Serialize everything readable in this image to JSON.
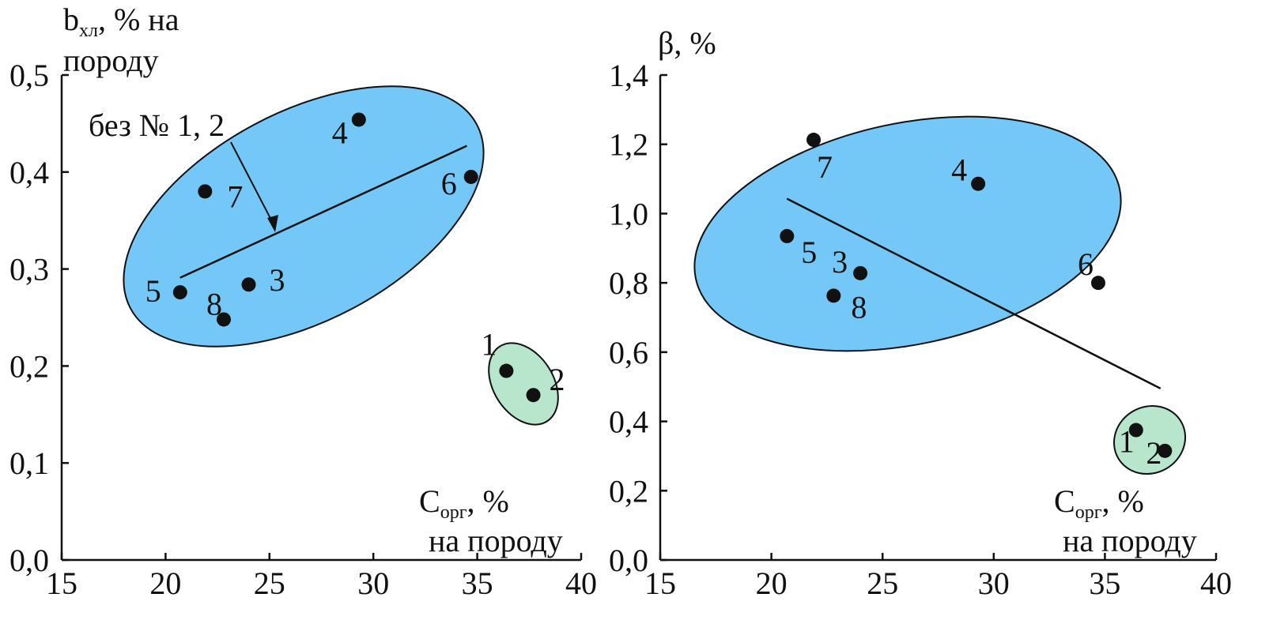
{
  "chart_data": [
    {
      "type": "scatter",
      "ylabel_main": "b",
      "ylabel_sub": "хл",
      "ylabel_rest": ", % на",
      "ylabel_line2": "породу",
      "xlabel_main": "C",
      "xlabel_sub": "орг",
      "xlabel_rest": ", %",
      "xlabel_line2": "на породу",
      "xlim": [
        15,
        40
      ],
      "ylim": [
        0.0,
        0.5
      ],
      "xticks": [
        "15",
        "20",
        "25",
        "30",
        "35",
        "40"
      ],
      "yticks": [
        "0,0",
        "0,1",
        "0,2",
        "0,3",
        "0,4",
        "0,5"
      ],
      "annotation": "без № 1, 2",
      "points": [
        {
          "label": "1",
          "x": 36.4,
          "y": 0.195
        },
        {
          "label": "2",
          "x": 37.7,
          "y": 0.17
        },
        {
          "label": "3",
          "x": 24.0,
          "y": 0.284
        },
        {
          "label": "4",
          "x": 29.3,
          "y": 0.454
        },
        {
          "label": "5",
          "x": 20.7,
          "y": 0.276
        },
        {
          "label": "6",
          "x": 34.7,
          "y": 0.395
        },
        {
          "label": "7",
          "x": 21.9,
          "y": 0.38
        },
        {
          "label": "8",
          "x": 22.8,
          "y": 0.248
        }
      ],
      "trend_line": {
        "x": [
          20.7,
          34.5
        ],
        "y": [
          0.291,
          0.427
        ]
      },
      "cluster_colors": {
        "main": "#73c8f8",
        "outlier": "#b8e6cc"
      }
    },
    {
      "type": "scatter",
      "ylabel_main": "β, %",
      "xlabel_main": "C",
      "xlabel_sub": "орг",
      "xlabel_rest": ", %",
      "xlabel_line2": "на породу",
      "xlim": [
        15,
        40
      ],
      "ylim": [
        0.0,
        1.4
      ],
      "xticks": [
        "15",
        "20",
        "25",
        "30",
        "35",
        "40"
      ],
      "yticks": [
        "0,0",
        "0,2",
        "0,4",
        "0,6",
        "0,8",
        "1,0",
        "1,2",
        "1,4"
      ],
      "points": [
        {
          "label": "1",
          "x": 36.4,
          "y": 0.375
        },
        {
          "label": "2",
          "x": 37.7,
          "y": 0.315
        },
        {
          "label": "3",
          "x": 24.0,
          "y": 0.828
        },
        {
          "label": "4",
          "x": 29.3,
          "y": 1.086
        },
        {
          "label": "5",
          "x": 20.7,
          "y": 0.935
        },
        {
          "label": "6",
          "x": 34.7,
          "y": 0.8
        },
        {
          "label": "7",
          "x": 21.9,
          "y": 1.213
        },
        {
          "label": "8",
          "x": 22.8,
          "y": 0.763
        }
      ],
      "trend_line": {
        "x": [
          20.7,
          37.5
        ],
        "y": [
          1.043,
          0.495
        ]
      },
      "cluster_colors": {
        "main": "#73c8f8",
        "outlier": "#b8e6cc"
      }
    }
  ]
}
